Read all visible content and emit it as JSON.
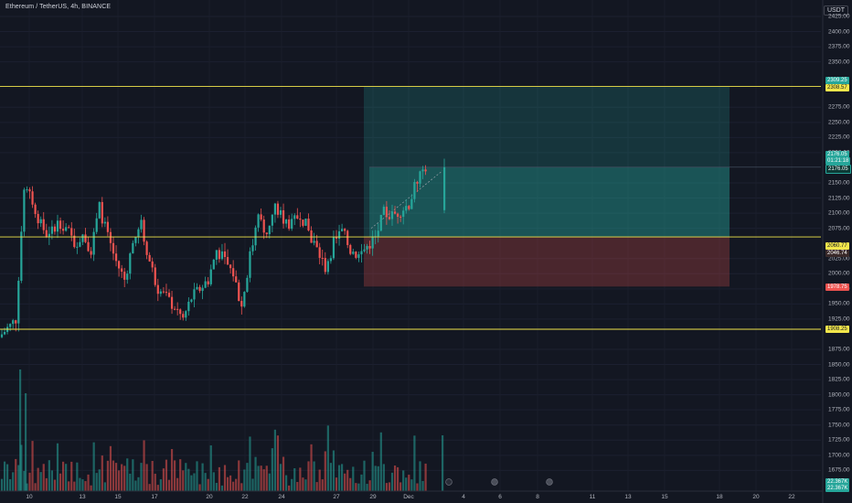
{
  "header": {
    "symbol_line": "Ethereum / TetherUS, 4h, BINANCE"
  },
  "currency_button": "USDT",
  "colors": {
    "background": "#131722",
    "up": "#26a69a",
    "down": "#ef5350",
    "hline": "#f2e64b",
    "target_zone": "#26a69a",
    "stop_zone": "#ef5350"
  },
  "y_axis_ticks": [
    "2425.00",
    "2400.00",
    "2375.00",
    "2350.00",
    "2275.00",
    "2250.00",
    "2225.00",
    "2200.00",
    "2150.00",
    "2125.00",
    "2100.00",
    "2075.00",
    "2025.00",
    "2000.00",
    "1975.00",
    "1950.00",
    "1925.00",
    "1875.00",
    "1850.00",
    "1825.00",
    "1800.00",
    "1775.00",
    "1750.00",
    "1725.00",
    "1700.00",
    "1675.00"
  ],
  "x_axis_ticks": [
    "10",
    "13",
    "15",
    "17",
    "20",
    "22",
    "24",
    "27",
    "29",
    "Dec",
    "4",
    "6",
    "8",
    "11",
    "13",
    "15",
    "18",
    "20",
    "22"
  ],
  "price_labels": {
    "target_top": "2309.25",
    "target_sub": "2308.57",
    "current_price": "2176.05",
    "current_countdown": "01:21:18",
    "current_line": "2176.05",
    "entry_top": "2060.77",
    "entry_sub": "2046.74",
    "stop": "1978.75",
    "support": "1908.25",
    "volume_a": "22.367K",
    "volume_b": "22.367K"
  },
  "chart_data": {
    "type": "candlestick",
    "title": "Ethereum / TetherUS, 4h, BINANCE",
    "y_unit": "USDT",
    "ylim": [
      1660,
      2435
    ],
    "horizontal_lines": [
      2309.25,
      2060.77,
      1908.25
    ],
    "position_tool": {
      "entry": 2060.77,
      "target": 2309.25,
      "stop": 1978.75
    },
    "price_path_points": [
      [
        1895,
        1910
      ],
      [
        1908,
        1925
      ],
      [
        1925,
        2140
      ],
      [
        2140,
        2120
      ],
      [
        2120,
        2080
      ],
      [
        2080,
        2060
      ],
      [
        2060,
        2090
      ],
      [
        2090,
        2075
      ],
      [
        2075,
        2050
      ],
      [
        2050,
        2065
      ],
      [
        2065,
        2040
      ],
      [
        2040,
        2110
      ],
      [
        2110,
        2060
      ],
      [
        2060,
        2020
      ],
      [
        2020,
        1990
      ],
      [
        1990,
        2050
      ],
      [
        2050,
        2080
      ],
      [
        2080,
        2020
      ],
      [
        2020,
        1975
      ],
      [
        1975,
        1960
      ],
      [
        1960,
        1945
      ],
      [
        1945,
        1925
      ],
      [
        1925,
        1960
      ],
      [
        1960,
        1975
      ],
      [
        1975,
        1990
      ],
      [
        1990,
        2040
      ],
      [
        2040,
        2020
      ],
      [
        2020,
        2000
      ],
      [
        2000,
        1945
      ],
      [
        1945,
        2030
      ],
      [
        2030,
        2090
      ],
      [
        2090,
        2070
      ],
      [
        2070,
        2110
      ],
      [
        2110,
        2090
      ],
      [
        2090,
        2080
      ],
      [
        2080,
        2100
      ],
      [
        2100,
        2070
      ],
      [
        2070,
        2040
      ],
      [
        2040,
        2010
      ],
      [
        2010,
        2050
      ],
      [
        2050,
        2070
      ],
      [
        2070,
        2040
      ],
      [
        2040,
        2030
      ],
      [
        2030,
        2045
      ],
      [
        2045,
        2060
      ],
      [
        2060,
        2100
      ],
      [
        2100,
        2095
      ],
      [
        2095,
        2105
      ],
      [
        2105,
        2115
      ],
      [
        2115,
        2155
      ],
      [
        2155,
        2176
      ]
    ]
  }
}
